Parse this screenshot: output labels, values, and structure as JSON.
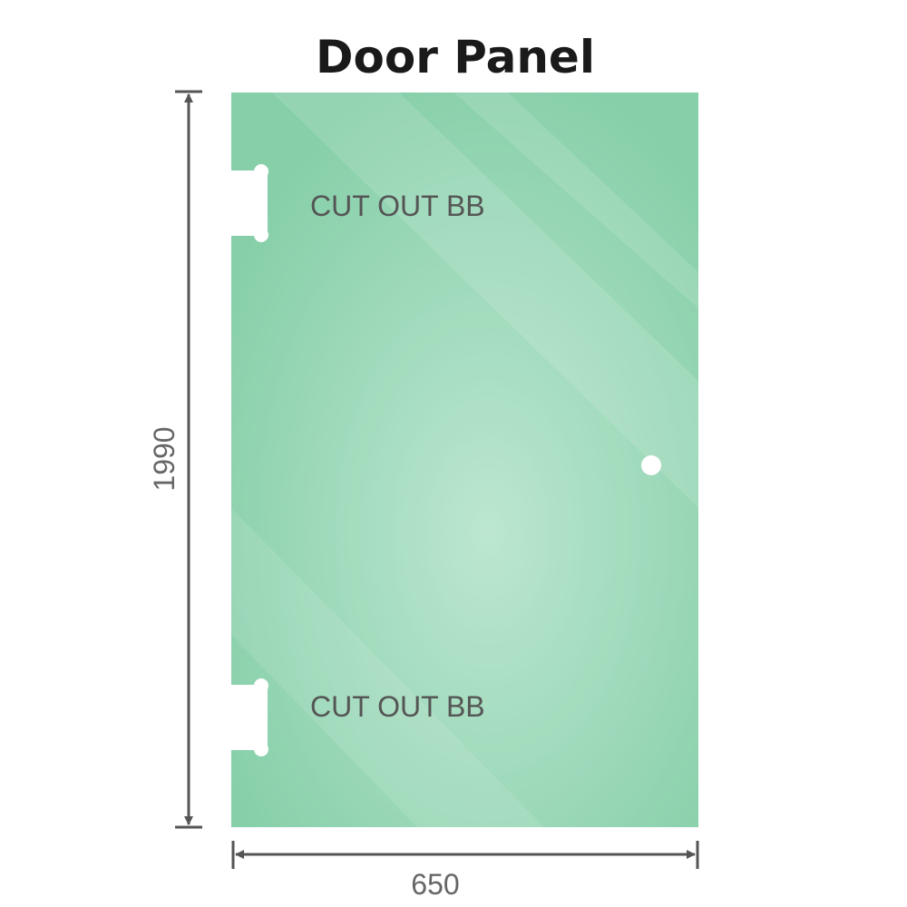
{
  "title": "Door Panel",
  "cutouts": [
    {
      "label": "CUT OUT BB"
    },
    {
      "label": "CUT OUT BB"
    }
  ],
  "dimensions": {
    "height": "1990",
    "width": "650"
  },
  "colors": {
    "glass_edge": "#86cfa9",
    "glass_center": "#bce6d0",
    "dimension_line": "#555555"
  }
}
